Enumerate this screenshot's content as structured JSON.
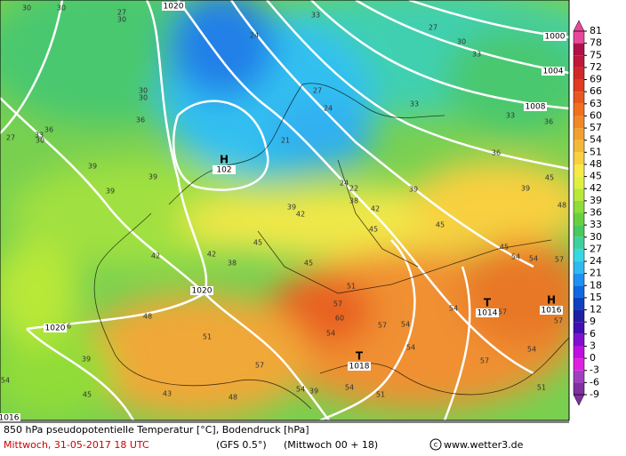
{
  "map": {
    "pressure_labels": [
      "1020",
      "1000",
      "1004",
      "1008",
      "1020",
      "1020",
      "1016"
    ],
    "systems": [
      {
        "symbol": "H",
        "pressure": "102"
      },
      {
        "symbol": "T",
        "pressure": "1014"
      },
      {
        "symbol": "T",
        "pressure": "1018"
      },
      {
        "symbol": "H",
        "pressure": "1016"
      }
    ],
    "temperature_labels": [
      30,
      30,
      27,
      30,
      33,
      27,
      30,
      33,
      30,
      30,
      36,
      36,
      33,
      30,
      27,
      39,
      39,
      39,
      24,
      27,
      24,
      33,
      33,
      36,
      36,
      39,
      45,
      48,
      39,
      24,
      22,
      38,
      42,
      39,
      42,
      21,
      45,
      42,
      38,
      42,
      45,
      45,
      45,
      45,
      54,
      54,
      57,
      51,
      57,
      60,
      57,
      54,
      54,
      57,
      57,
      48,
      51,
      36,
      39,
      45,
      43,
      48,
      57,
      54,
      54,
      57,
      54,
      51,
      54,
      39,
      54,
      51,
      54
    ]
  },
  "colorbar": {
    "ticks": [
      81,
      78,
      75,
      72,
      69,
      66,
      63,
      60,
      57,
      54,
      51,
      48,
      45,
      42,
      39,
      36,
      33,
      30,
      27,
      24,
      21,
      18,
      15,
      12,
      9,
      6,
      3,
      0,
      -3,
      -6,
      -9
    ],
    "colors": [
      "#e8489a",
      "#b01048",
      "#c01838",
      "#d02828",
      "#e03c20",
      "#e85820",
      "#f07020",
      "#f08828",
      "#f0a030",
      "#f4b838",
      "#f8d040",
      "#f8e848",
      "#e0f040",
      "#b8e838",
      "#90dc38",
      "#68d040",
      "#48c860",
      "#40d0a0",
      "#38d8e0",
      "#30b8f0",
      "#2090f0",
      "#1068e0",
      "#1040c0",
      "#2020a0",
      "#4010b0",
      "#8010d0",
      "#c010e0",
      "#e020e0",
      "#a040c0",
      "#8030a0"
    ]
  },
  "footer": {
    "title": "850 hPa pseudopotentielle Temperatur [°C], Bodendruck [hPa]",
    "date": "Mittwoch, 31-05-2017  18 UTC",
    "model": "(GFS 0.5°)",
    "run": "(Mittwoch 00 + 18)",
    "site": "www.wetter3.de"
  }
}
